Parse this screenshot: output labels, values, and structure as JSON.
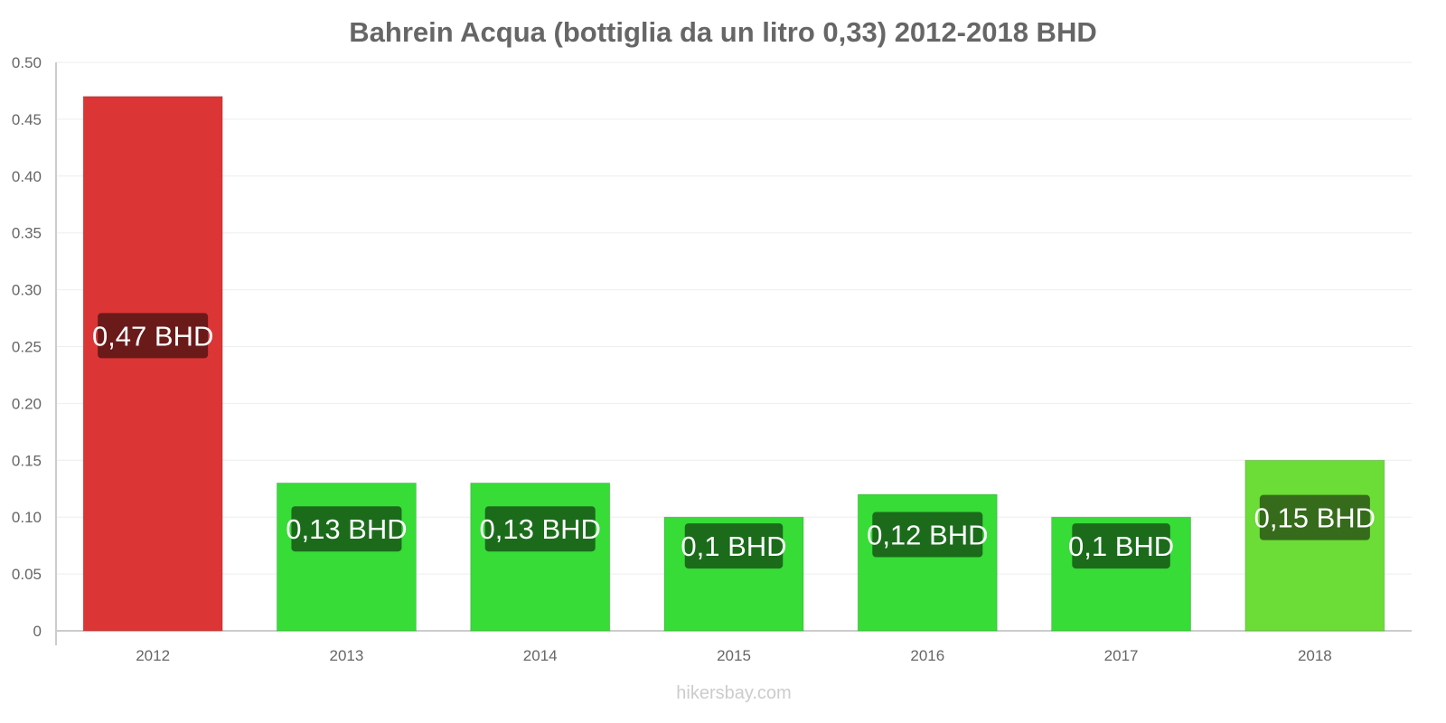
{
  "chart_data": {
    "type": "bar",
    "title": "Bahrein Acqua (bottiglia da un litro 0,33) 2012-2018 BHD",
    "categories": [
      "2012",
      "2013",
      "2014",
      "2015",
      "2016",
      "2017",
      "2018"
    ],
    "values": [
      0.47,
      0.13,
      0.13,
      0.1,
      0.12,
      0.1,
      0.15
    ],
    "data_labels": [
      "0,47 BHD",
      "0,13 BHD",
      "0,13 BHD",
      "0,1 BHD",
      "0,12 BHD",
      "0,1 BHD",
      "0,15 BHD"
    ],
    "bar_colors": [
      "#dc3535",
      "#37dc37",
      "#37dc37",
      "#37dc37",
      "#37dc37",
      "#37dc37",
      "#6cdc37"
    ],
    "label_colors": [
      "#6b1a1a",
      "#1b6b1b",
      "#1b6b1b",
      "#1b6b1b",
      "#1b6b1b",
      "#1b6b1b",
      "#356b1b"
    ],
    "yticks": [
      "0",
      "0.05",
      "0.10",
      "0.15",
      "0.20",
      "0.25",
      "0.30",
      "0.35",
      "0.40",
      "0.45",
      "0.50"
    ],
    "ylim": [
      0,
      0.5
    ],
    "xlabel": "",
    "ylabel": "",
    "grid": true
  },
  "watermark": "hikersbay.com"
}
